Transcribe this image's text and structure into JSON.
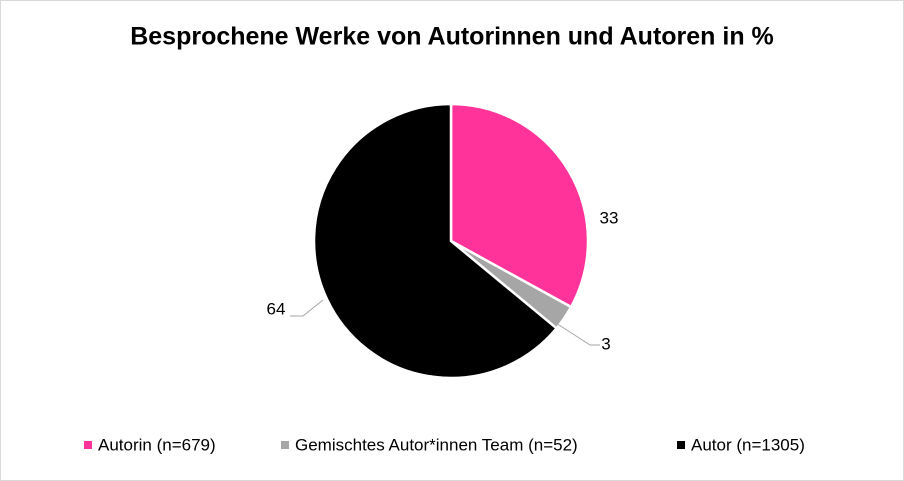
{
  "chart_data": {
    "type": "pie",
    "title": "Besprochene Werke von Autorinnen und Autoren in %",
    "categories": [
      "Autorin (n=679)",
      "Gemischtes Autor*innen Team (n=52)",
      "Autor (n=1305)"
    ],
    "values": [
      33,
      3,
      64
    ],
    "colors": [
      "#ff3399",
      "#a6a6a6",
      "#000000"
    ],
    "legend": "bottom"
  }
}
